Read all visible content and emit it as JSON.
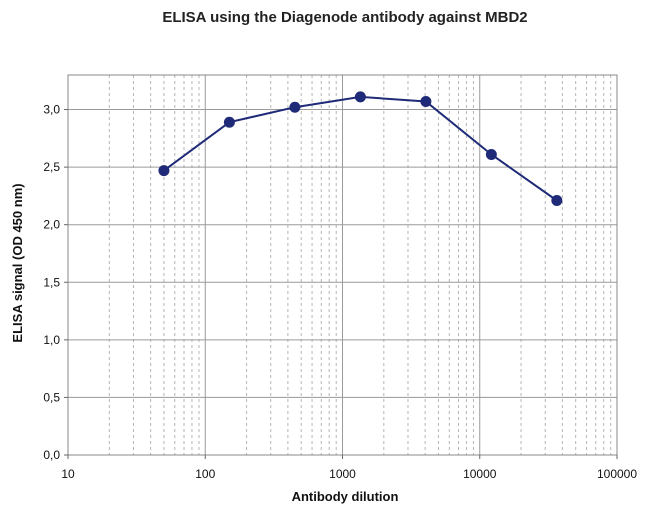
{
  "chart_data": {
    "type": "line",
    "title": "ELISA using the Diagenode antibody against MBD2",
    "xlabel": "Antibody dilution",
    "ylabel": "ELISA signal (OD 450 nm)",
    "x_scale": "log",
    "xlim": [
      10,
      100000
    ],
    "ylim": [
      0,
      3.3
    ],
    "x_ticks": [
      10,
      100,
      1000,
      10000,
      100000
    ],
    "x_tick_labels": [
      "10",
      "100",
      "1000",
      "10000",
      "100000"
    ],
    "y_ticks": [
      0,
      0.5,
      1.0,
      1.5,
      2.0,
      2.5,
      3.0
    ],
    "y_tick_labels": [
      "0,0",
      "0,5",
      "1,0",
      "1,5",
      "2,0",
      "2,5",
      "3,0"
    ],
    "grid": true,
    "legend": false,
    "series": [
      {
        "x": [
          50,
          150,
          450,
          1350,
          4050,
          12150,
          36450
        ],
        "y": [
          2.47,
          2.89,
          3.02,
          3.11,
          3.07,
          2.61,
          2.21
        ],
        "color": "#1f2a78"
      }
    ]
  }
}
